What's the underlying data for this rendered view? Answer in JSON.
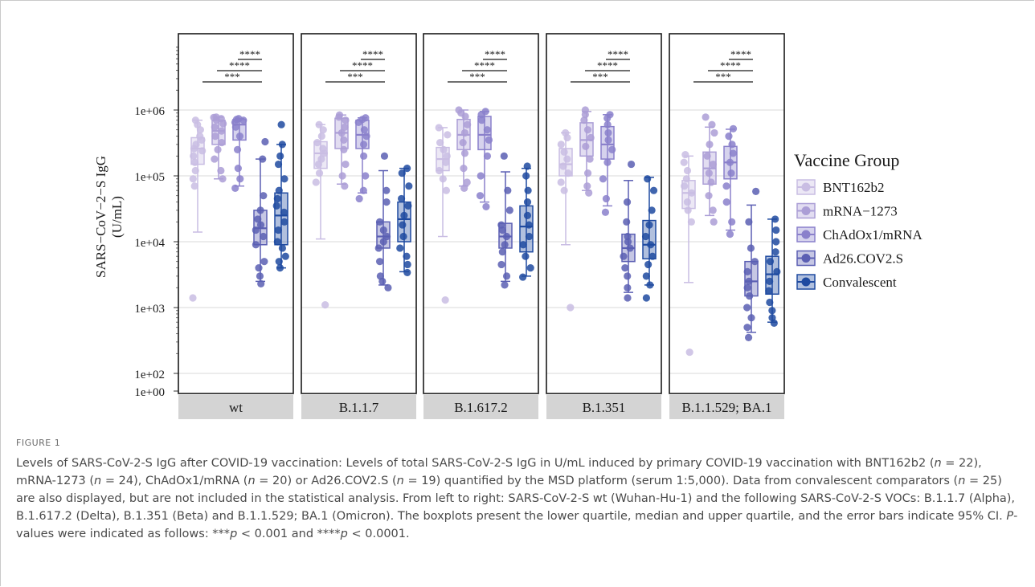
{
  "chart_data": {
    "type": "box",
    "ylabel_line1": "SARS−CoV−2−S IgG",
    "ylabel_line2": "(U/mL)",
    "yscale": "log",
    "yticks": [
      "1e+00",
      "1e+02",
      "1e+03",
      "1e+04",
      "1e+05",
      "1e+06"
    ],
    "legend": {
      "title": "Vaccine Group",
      "placement": "right"
    },
    "groups": [
      {
        "name": "BNT162b2",
        "color": "#c9bde3"
      },
      {
        "name": "mRNA−1273",
        "color": "#ab9ed6"
      },
      {
        "name": "ChAdOx1/mRNA",
        "color": "#8a80cb"
      },
      {
        "name": "Ad26.COV2.S",
        "color": "#5b5fb3"
      },
      {
        "name": "Convalescent",
        "color": "#1f4aa0"
      }
    ],
    "significance": [
      "****",
      "****",
      "***"
    ],
    "panels": [
      {
        "label": "wt",
        "boxes": [
          {
            "whisker_low": 14000,
            "q1": 150000,
            "median": 260000,
            "q3": 380000,
            "whisker_high": 700000,
            "points": [
              1400,
              70000,
              90000,
              120000,
              160000,
              200000,
              240000,
              260000,
              300000,
              350000,
              400000,
              500000,
              600000,
              700000
            ]
          },
          {
            "whisker_low": 90000,
            "q1": 300000,
            "median": 480000,
            "q3": 700000,
            "whisker_high": 780000,
            "points": [
              90000,
              120000,
              180000,
              250000,
              320000,
              400000,
              480000,
              550000,
              620000,
              700000,
              740000,
              770000,
              780000
            ]
          },
          {
            "whisker_low": 70000,
            "q1": 350000,
            "median": 600000,
            "q3": 720000,
            "whisker_high": 740000,
            "points": [
              65000,
              90000,
              130000,
              250000,
              400000,
              550000,
              650000,
              700000,
              720000,
              740000
            ]
          },
          {
            "whisker_low": 2500,
            "q1": 9000,
            "median": 16000,
            "q3": 30000,
            "whisker_high": 180000,
            "points": [
              2300,
              3000,
              4000,
              5000,
              9000,
              12000,
              15000,
              18000,
              22000,
              30000,
              50000,
              180000,
              330000
            ]
          },
          {
            "whisker_low": 4000,
            "q1": 9000,
            "median": 25000,
            "q3": 55000,
            "whisker_high": 300000,
            "points": [
              4000,
              5000,
              6000,
              8000,
              10000,
              15000,
              20000,
              28000,
              35000,
              45000,
              60000,
              90000,
              150000,
              200000,
              300000,
              600000
            ]
          }
        ]
      },
      {
        "label": "B.1.1.7",
        "boxes": [
          {
            "whisker_low": 11000,
            "q1": 130000,
            "median": 220000,
            "q3": 330000,
            "whisker_high": 600000,
            "points": [
              1100,
              80000,
              110000,
              150000,
              180000,
              220000,
              260000,
              320000,
              400000,
              500000,
              600000
            ]
          },
          {
            "whisker_low": 75000,
            "q1": 260000,
            "median": 450000,
            "q3": 750000,
            "whisker_high": 840000,
            "points": [
              70000,
              100000,
              150000,
              250000,
              350000,
              450000,
              550000,
              700000,
              780000,
              840000
            ]
          },
          {
            "whisker_low": 55000,
            "q1": 260000,
            "median": 420000,
            "q3": 700000,
            "whisker_high": 760000,
            "points": [
              45000,
              60000,
              100000,
              200000,
              300000,
              400000,
              500000,
              650000,
              720000,
              760000
            ]
          },
          {
            "whisker_low": 2200,
            "q1": 8000,
            "median": 12000,
            "q3": 20000,
            "whisker_high": 120000,
            "points": [
              2000,
              2500,
              3000,
              5000,
              8000,
              10000,
              12000,
              15000,
              20000,
              40000,
              60000,
              200000
            ]
          },
          {
            "whisker_low": 3500,
            "q1": 10000,
            "median": 22000,
            "q3": 40000,
            "whisker_high": 130000,
            "points": [
              3400,
              4500,
              6000,
              8000,
              12000,
              18000,
              25000,
              35000,
              45000,
              70000,
              110000,
              130000
            ]
          }
        ]
      },
      {
        "label": "B.1.617.2",
        "boxes": [
          {
            "whisker_low": 12000,
            "q1": 120000,
            "median": 180000,
            "q3": 270000,
            "whisker_high": 540000,
            "points": [
              1300,
              60000,
              90000,
              120000,
              160000,
              200000,
              250000,
              320000,
              420000,
              540000
            ]
          },
          {
            "whisker_low": 70000,
            "q1": 250000,
            "median": 420000,
            "q3": 720000,
            "whisker_high": 1000000,
            "points": [
              65000,
              80000,
              130000,
              220000,
              320000,
              450000,
              600000,
              800000,
              900000,
              1000000
            ]
          },
          {
            "whisker_low": 40000,
            "q1": 250000,
            "median": 420000,
            "q3": 800000,
            "whisker_high": 950000,
            "points": [
              34000,
              50000,
              100000,
              200000,
              350000,
              500000,
              700000,
              850000,
              950000
            ]
          },
          {
            "whisker_low": 2500,
            "q1": 8000,
            "median": 12000,
            "q3": 19000,
            "whisker_high": 115000,
            "points": [
              2200,
              3000,
              4500,
              7000,
              9000,
              12000,
              15000,
              18000,
              30000,
              60000,
              200000
            ]
          },
          {
            "whisker_low": 3000,
            "q1": 7000,
            "median": 17000,
            "q3": 35000,
            "whisker_high": 130000,
            "points": [
              2900,
              4000,
              6000,
              9000,
              12000,
              18000,
              25000,
              40000,
              60000,
              100000,
              140000
            ]
          }
        ]
      },
      {
        "label": "B.1.351",
        "boxes": [
          {
            "whisker_low": 9000,
            "q1": 100000,
            "median": 150000,
            "q3": 260000,
            "whisker_high": 450000,
            "points": [
              1000,
              60000,
              80000,
              110000,
              140000,
              180000,
              230000,
              300000,
              380000,
              450000
            ]
          },
          {
            "whisker_low": 60000,
            "q1": 200000,
            "median": 350000,
            "q3": 640000,
            "whisker_high": 950000,
            "points": [
              55000,
              70000,
              110000,
              180000,
              280000,
              380000,
              500000,
              700000,
              850000,
              1000000
            ]
          },
          {
            "whisker_low": 35000,
            "q1": 180000,
            "median": 300000,
            "q3": 560000,
            "whisker_high": 850000,
            "points": [
              28000,
              45000,
              90000,
              160000,
              250000,
              350000,
              450000,
              600000,
              750000,
              850000
            ]
          },
          {
            "whisker_low": 1700,
            "q1": 5000,
            "median": 8000,
            "q3": 13000,
            "whisker_high": 85000,
            "points": [
              1400,
              2000,
              3000,
              4000,
              6000,
              8000,
              10000,
              12000,
              20000,
              40000,
              150000
            ]
          },
          {
            "whisker_low": 2200,
            "q1": 5500,
            "median": 9000,
            "q3": 21000,
            "whisker_high": 95000,
            "points": [
              1400,
              2200,
              3000,
              4500,
              6000,
              9000,
              12000,
              18000,
              30000,
              60000,
              90000
            ]
          }
        ]
      },
      {
        "label": "B.1.1.529; BA.1",
        "boxes": [
          {
            "whisker_low": 2400,
            "q1": 32000,
            "median": 55000,
            "q3": 85000,
            "whisker_high": 200000,
            "points": [
              210,
              20000,
              30000,
              40000,
              55000,
              70000,
              90000,
              120000,
              160000,
              210000
            ]
          },
          {
            "whisker_low": 25000,
            "q1": 75000,
            "median": 130000,
            "q3": 230000,
            "whisker_high": 550000,
            "points": [
              20000,
              30000,
              50000,
              80000,
              110000,
              150000,
              200000,
              300000,
              450000,
              600000,
              780000
            ]
          },
          {
            "whisker_low": 15000,
            "q1": 90000,
            "median": 160000,
            "q3": 280000,
            "whisker_high": 510000,
            "points": [
              13000,
              20000,
              40000,
              70000,
              110000,
              160000,
              220000,
              300000,
              400000,
              520000
            ]
          },
          {
            "whisker_low": 420,
            "q1": 1500,
            "median": 2500,
            "q3": 5000,
            "whisker_high": 36000,
            "points": [
              350,
              500,
              700,
              1000,
              1500,
              2000,
              2500,
              3500,
              5000,
              8000,
              20000,
              58000
            ]
          },
          {
            "whisker_low": 600,
            "q1": 1600,
            "median": 3200,
            "q3": 6000,
            "whisker_high": 22000,
            "points": [
              580,
              700,
              900,
              1200,
              1800,
              2500,
              3500,
              5000,
              7000,
              10000,
              15000,
              22000
            ]
          }
        ]
      }
    ]
  },
  "caption": {
    "label": "FIGURE 1",
    "text": "Levels of SARS-CoV-2-S IgG after COVID-19 vaccination: Levels of total SARS-CoV-2-S IgG in U/mL induced by primary COVID-19 vaccination with BNT162b2 (n = 22), mRNA-1273 (n = 24), ChAdOx1/mRNA (n = 20) or Ad26.COV2.S (n = 19) quantified by the MSD platform (serum 1:5,000). Data from convalescent comparators (n = 25) are also displayed, but are not included in the statistical analysis. From left to right: SARS-CoV-2-S wt (Wuhan-Hu-1) and the following SARS-CoV-2-S VOCs: B.1.1.7 (Alpha), B.1.617.2 (Delta), B.1.351 (Beta) and B.1.1.529; BA.1 (Omicron). The boxplots present the lower quartile, median and upper quartile, and the error bars indicate 95% CI. P-values were indicated as follows: ***p < 0.001 and ****p < 0.0001."
  }
}
